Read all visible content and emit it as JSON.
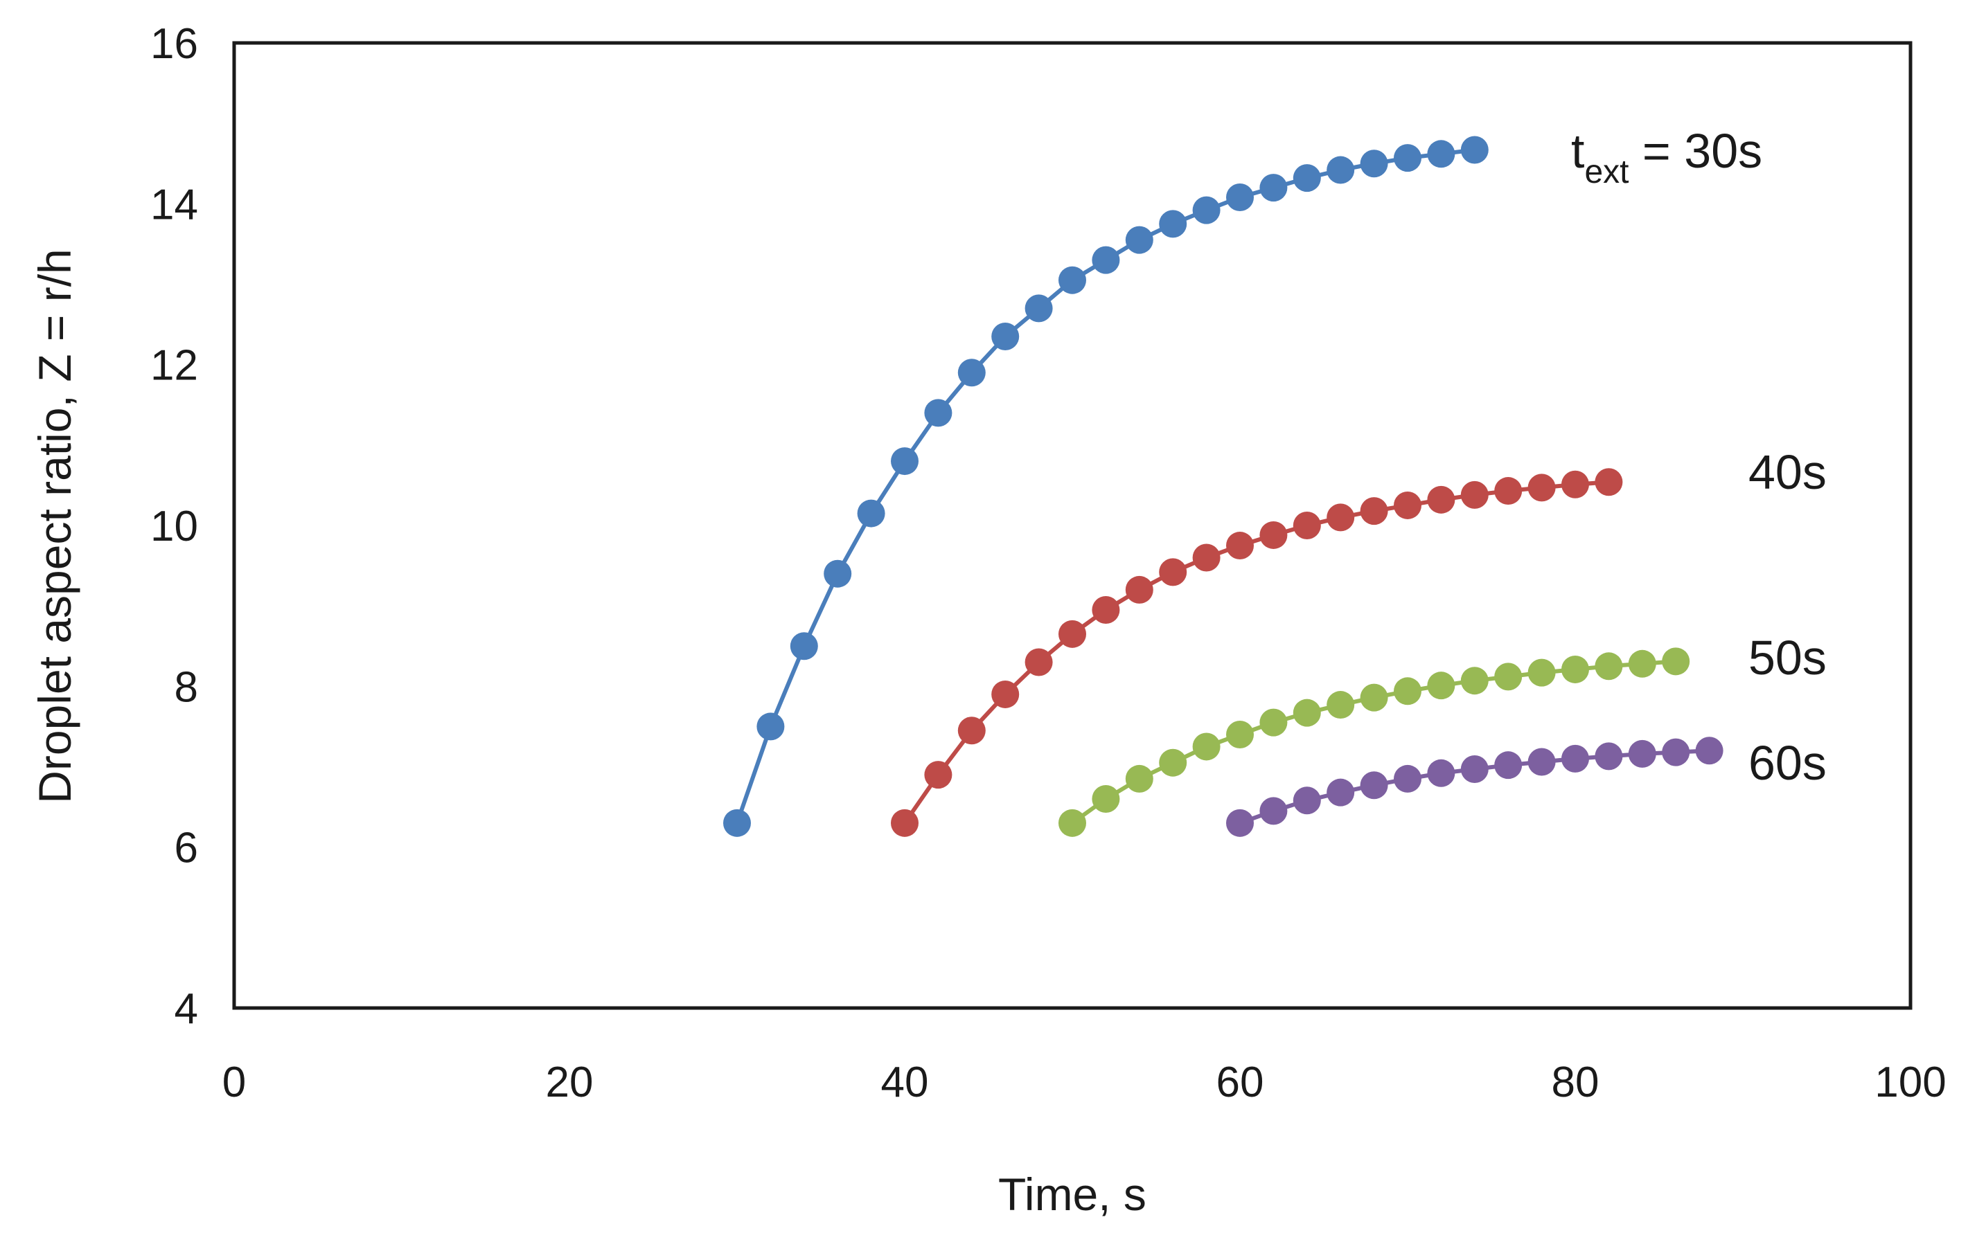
{
  "chart_data": {
    "type": "line",
    "title": "",
    "xlabel": "Time, s",
    "ylabel": "Droplet aspect ratio, Z = r/h",
    "xlim": [
      0,
      100
    ],
    "ylim": [
      4,
      16
    ],
    "x_ticks": [
      0,
      20,
      40,
      60,
      80,
      100
    ],
    "y_ticks": [
      4,
      6,
      8,
      10,
      12,
      14,
      16
    ],
    "x_tick_labels": [
      "0",
      "20",
      "40",
      "60",
      "80",
      "100"
    ],
    "y_tick_labels": [
      "4",
      "6",
      "8",
      "10",
      "12",
      "14",
      "16"
    ],
    "grid": false,
    "legend": "inline labels at right end of each series",
    "series": [
      {
        "name": "t_ext = 30s",
        "label_main": "t",
        "label_sub": "ext",
        "label_rest": " = 30s",
        "color": "#4a7ebb",
        "x": [
          30,
          32,
          34,
          36,
          38,
          40,
          42,
          44,
          46,
          48,
          50,
          52,
          54,
          56,
          58,
          60,
          62,
          64,
          66,
          68,
          70,
          72,
          74
        ],
        "y": [
          6.3,
          7.5,
          8.5,
          9.4,
          10.15,
          10.8,
          11.4,
          11.9,
          12.35,
          12.7,
          13.05,
          13.3,
          13.55,
          13.75,
          13.92,
          14.08,
          14.2,
          14.32,
          14.42,
          14.5,
          14.57,
          14.62,
          14.67
        ]
      },
      {
        "name": "40s",
        "label_main": "40s",
        "color": "#be4b48",
        "x": [
          40,
          42,
          44,
          46,
          48,
          50,
          52,
          54,
          56,
          58,
          60,
          62,
          64,
          66,
          68,
          70,
          72,
          74,
          76,
          78,
          80,
          82
        ],
        "y": [
          6.3,
          6.9,
          7.45,
          7.9,
          8.3,
          8.65,
          8.95,
          9.2,
          9.42,
          9.6,
          9.75,
          9.88,
          10.0,
          10.1,
          10.18,
          10.25,
          10.32,
          10.38,
          10.43,
          10.47,
          10.51,
          10.54
        ]
      },
      {
        "name": "50s",
        "label_main": "50s",
        "color": "#98b954",
        "x": [
          50,
          52,
          54,
          56,
          58,
          60,
          62,
          64,
          66,
          68,
          70,
          72,
          74,
          76,
          78,
          80,
          82,
          84,
          86
        ],
        "y": [
          6.3,
          6.6,
          6.85,
          7.05,
          7.25,
          7.4,
          7.55,
          7.67,
          7.77,
          7.86,
          7.94,
          8.01,
          8.07,
          8.12,
          8.17,
          8.21,
          8.25,
          8.28,
          8.31
        ]
      },
      {
        "name": "60s",
        "label_main": "60s",
        "color": "#7d60a0",
        "x": [
          60,
          62,
          64,
          66,
          68,
          70,
          72,
          74,
          76,
          78,
          80,
          82,
          84,
          86,
          88
        ],
        "y": [
          6.3,
          6.45,
          6.58,
          6.68,
          6.77,
          6.85,
          6.92,
          6.97,
          7.02,
          7.06,
          7.1,
          7.13,
          7.16,
          7.18,
          7.2
        ]
      }
    ]
  }
}
